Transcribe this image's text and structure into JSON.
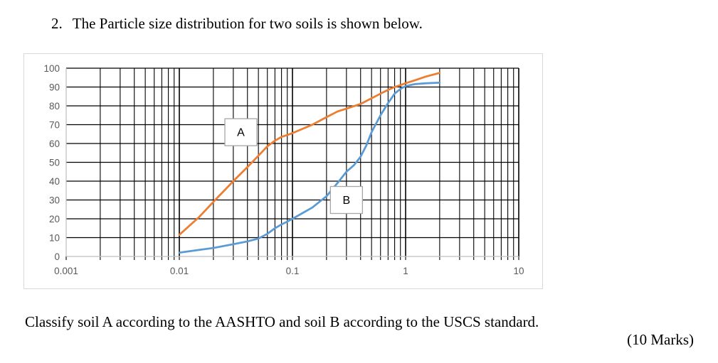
{
  "page": {
    "question_number": "2.",
    "title": "The Particle size distribution for two soils is shown below.",
    "footer_line": "Classify soil A according to the AASHTO and soil B according to the USCS standard.",
    "marks": "(10 Marks)"
  },
  "chart_data": {
    "type": "line",
    "title": "",
    "xlabel": "",
    "ylabel": "",
    "x_scale": "log",
    "xlim": [
      0.001,
      10
    ],
    "ylim": [
      0,
      100
    ],
    "x_tick_labels": [
      "0.001",
      "0.01",
      "0.1",
      "1",
      "10"
    ],
    "x_tick_values": [
      0.001,
      0.01,
      0.1,
      1,
      10
    ],
    "y_ticks": [
      0,
      10,
      20,
      30,
      40,
      50,
      60,
      70,
      80,
      90,
      100
    ],
    "grid": "both",
    "legend_position": "none",
    "colors": {
      "grid": "#000000",
      "axis": "#bfbfbf",
      "tick_text": "#595959",
      "panel_border": "#d9d9d9",
      "label_box_border": "#a6a6a6"
    },
    "series": [
      {
        "name": "A",
        "color": "#ED7D31",
        "label": "A",
        "label_pos": {
          "x": 0.035,
          "y": 66
        },
        "points": [
          [
            0.01,
            11.5
          ],
          [
            0.015,
            21
          ],
          [
            0.02,
            29
          ],
          [
            0.03,
            40
          ],
          [
            0.04,
            47.5
          ],
          [
            0.05,
            53.5
          ],
          [
            0.06,
            58.5
          ],
          [
            0.07,
            61.5
          ],
          [
            0.08,
            63.5
          ],
          [
            0.09,
            64.5
          ],
          [
            0.1,
            65.5
          ],
          [
            0.15,
            70
          ],
          [
            0.2,
            74
          ],
          [
            0.25,
            77
          ],
          [
            0.3,
            78.5
          ],
          [
            0.4,
            81
          ],
          [
            0.5,
            84
          ],
          [
            0.6,
            86.5
          ],
          [
            0.7,
            88.5
          ],
          [
            0.8,
            90
          ],
          [
            0.9,
            91
          ],
          [
            1,
            92
          ],
          [
            1.2,
            93.5
          ],
          [
            1.5,
            95.5
          ],
          [
            2,
            97.5
          ]
        ]
      },
      {
        "name": "B",
        "color": "#5B9BD5",
        "label": "B",
        "label_pos": {
          "x": 0.3,
          "y": 30
        },
        "points": [
          [
            0.01,
            2
          ],
          [
            0.015,
            3.5
          ],
          [
            0.02,
            4.5
          ],
          [
            0.03,
            6.5
          ],
          [
            0.04,
            8
          ],
          [
            0.05,
            9.5
          ],
          [
            0.06,
            12
          ],
          [
            0.07,
            15
          ],
          [
            0.08,
            17
          ],
          [
            0.09,
            18.5
          ],
          [
            0.1,
            20
          ],
          [
            0.15,
            26
          ],
          [
            0.2,
            32
          ],
          [
            0.25,
            39
          ],
          [
            0.3,
            45
          ],
          [
            0.35,
            48.5
          ],
          [
            0.4,
            53
          ],
          [
            0.45,
            59
          ],
          [
            0.5,
            66
          ],
          [
            0.6,
            75
          ],
          [
            0.7,
            81.5
          ],
          [
            0.8,
            86.5
          ],
          [
            0.9,
            89
          ],
          [
            1,
            90.5
          ],
          [
            1.2,
            91.5
          ],
          [
            1.5,
            92
          ],
          [
            2,
            92.3
          ]
        ]
      }
    ]
  }
}
